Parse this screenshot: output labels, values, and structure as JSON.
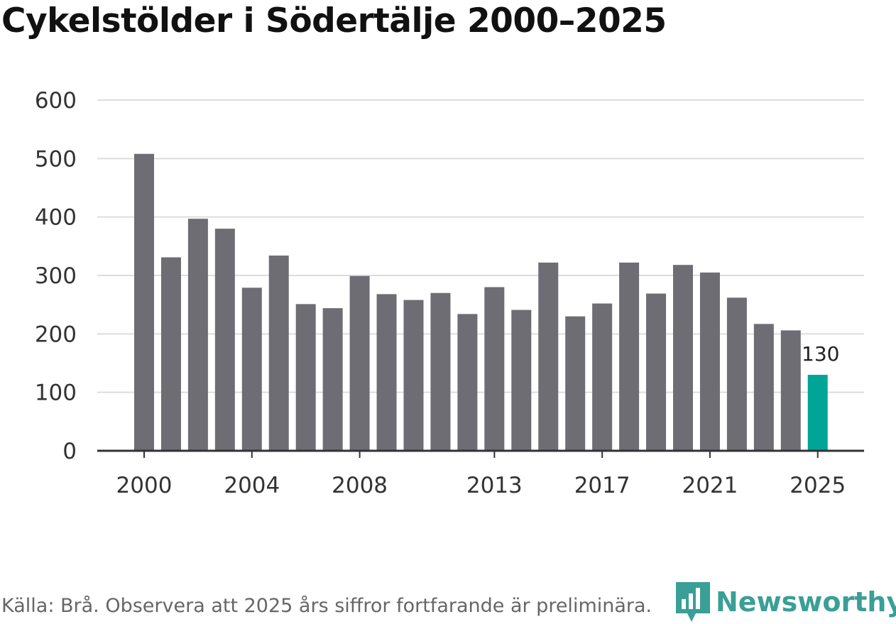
{
  "title": "Cykelstölder i Södertälje 2000–2025",
  "footer": "Källa: Brå. Observera att 2025 års siffror fortfarande är preliminära.",
  "brand": "Newsworthy",
  "colors": {
    "bar": "#6e6d74",
    "highlight": "#00a597",
    "grid": "#dddddd",
    "axis": "#333333",
    "brand": "#3a9f96"
  },
  "chart_data": {
    "type": "bar",
    "title": "Cykelstölder i Södertälje 2000–2025",
    "xlabel": "",
    "ylabel": "",
    "categories": [
      "2000",
      "2001",
      "2002",
      "2003",
      "2004",
      "2005",
      "2006",
      "2007",
      "2008",
      "2009",
      "2010",
      "2011",
      "2012",
      "2013",
      "2014",
      "2015",
      "2016",
      "2017",
      "2018",
      "2019",
      "2020",
      "2021",
      "2022",
      "2023",
      "2024",
      "2025"
    ],
    "values": [
      508,
      331,
      397,
      380,
      279,
      334,
      251,
      244,
      299,
      268,
      258,
      270,
      234,
      280,
      241,
      322,
      230,
      252,
      322,
      269,
      318,
      305,
      262,
      217,
      206,
      130
    ],
    "ylim": [
      0,
      600
    ],
    "yticks": [
      0,
      100,
      200,
      300,
      400,
      500,
      600
    ],
    "xtick_labels": [
      "2000",
      "2004",
      "2008",
      "2013",
      "2017",
      "2021",
      "2025"
    ],
    "highlight": {
      "category": "2025",
      "label": "130"
    },
    "grid": true
  }
}
